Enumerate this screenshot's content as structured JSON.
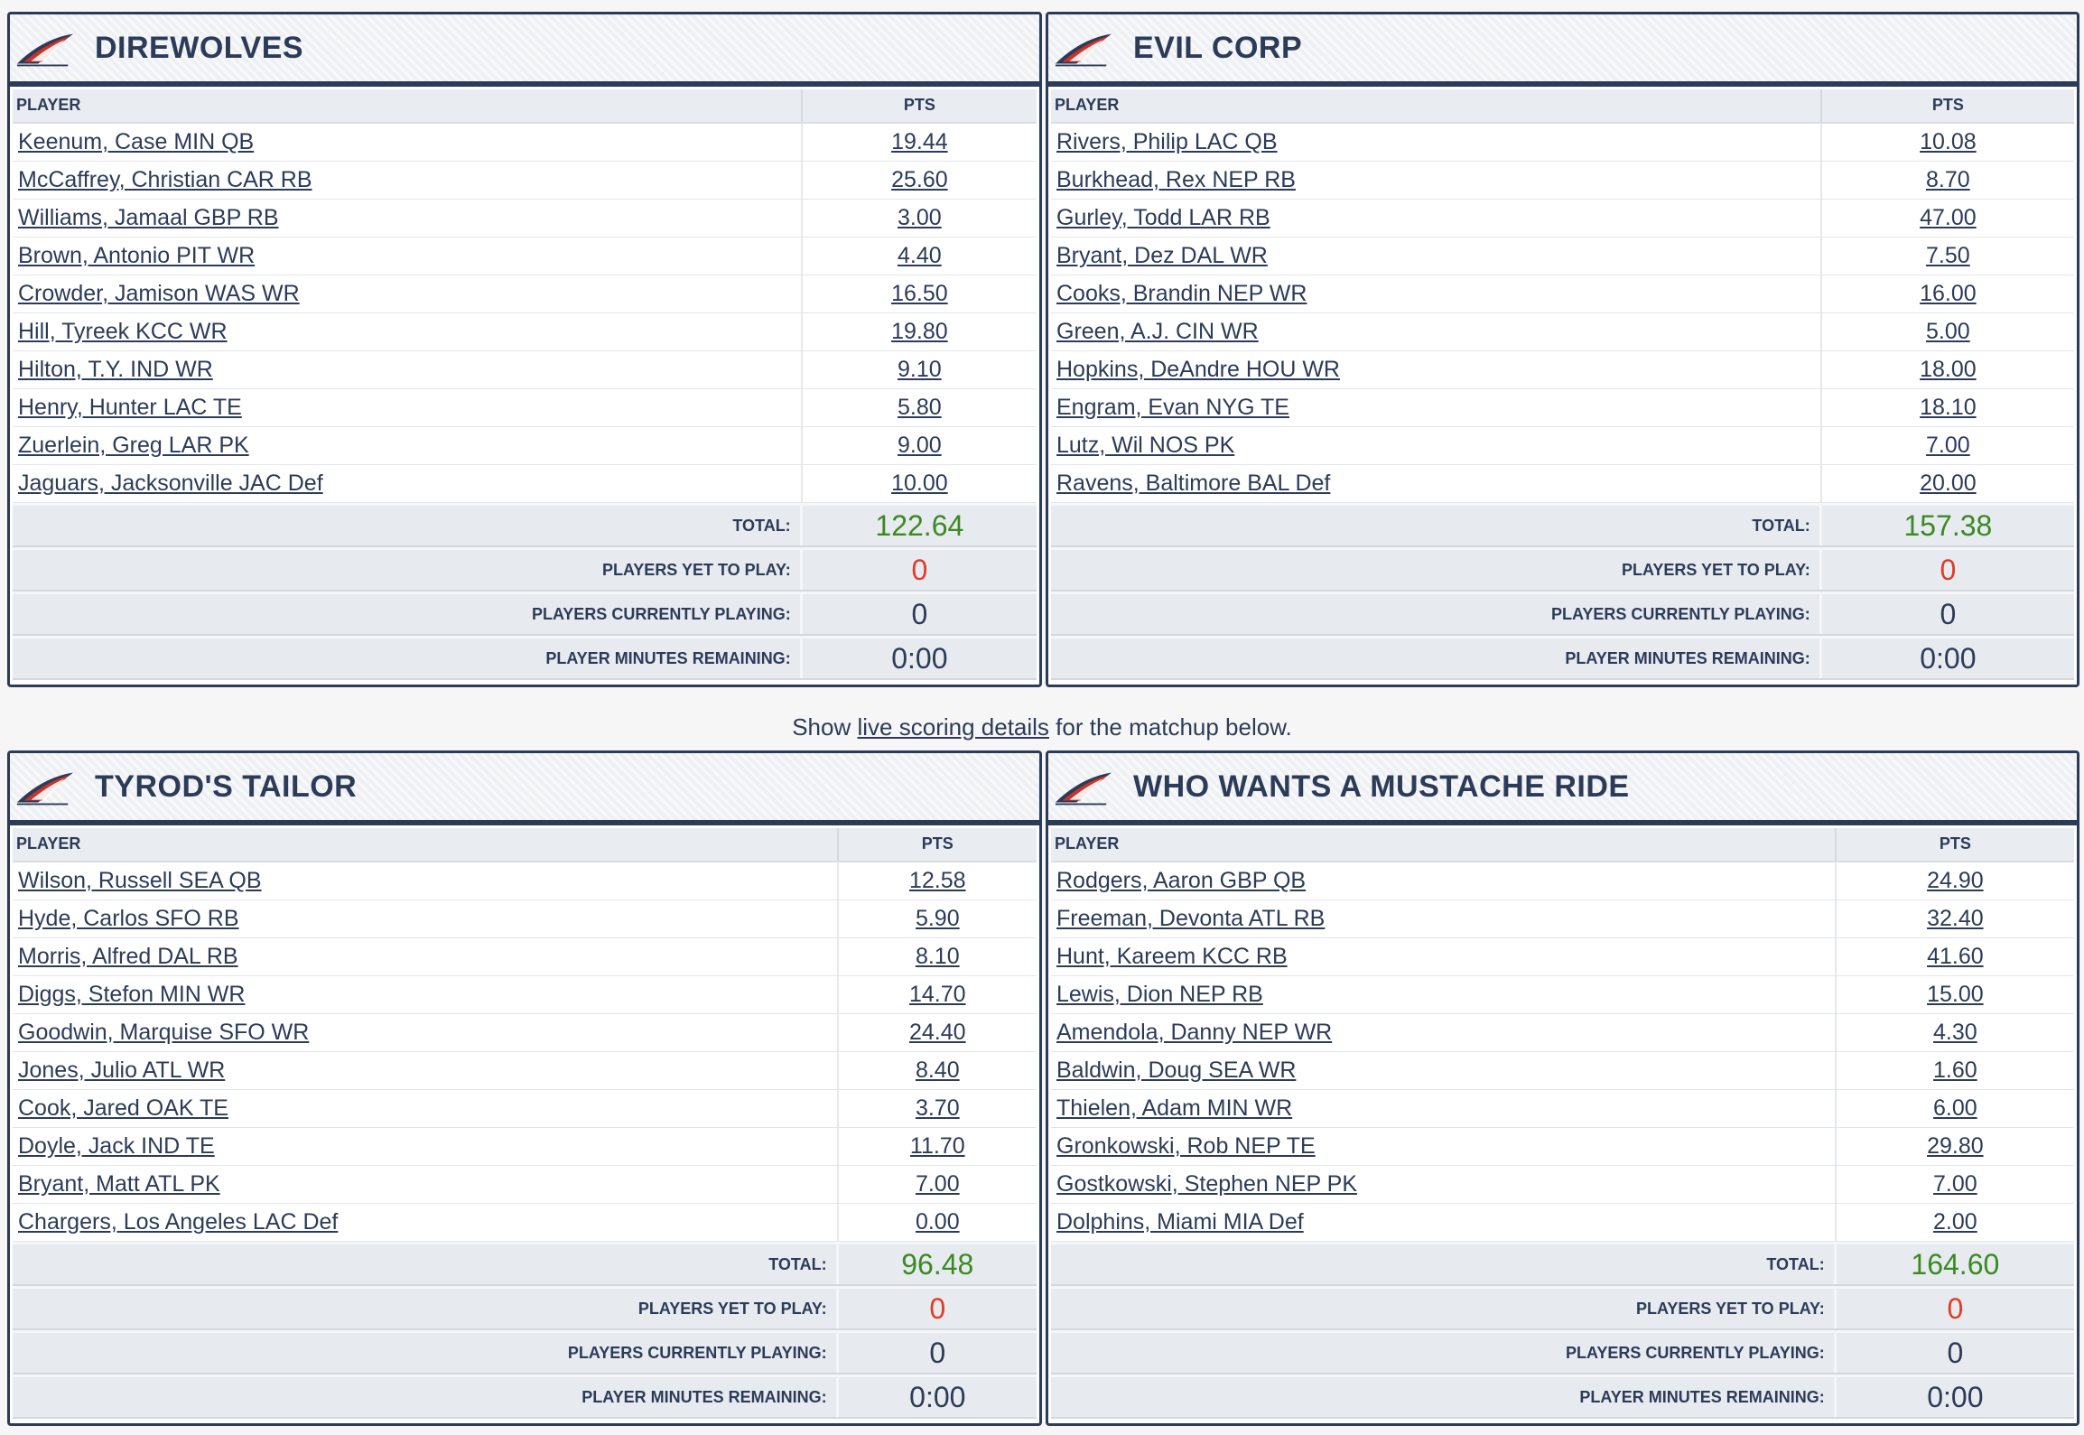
{
  "labels": {
    "player_col": "PLAYER",
    "pts_col": "PTS",
    "total": "TOTAL:",
    "yet_to_play": "PLAYERS YET TO PLAY:",
    "currently_playing": "PLAYERS CURRENTLY PLAYING:",
    "minutes_remaining": "PLAYER MINUTES REMAINING:"
  },
  "colors": {
    "navy": "#2c3b58",
    "total_green": "#3a8a22",
    "yet_red": "#e03c26",
    "row_gray": "#e7eaef"
  },
  "info": {
    "prefix": "Show",
    "link": "live scoring details",
    "suffix": "for the matchup below."
  },
  "teams": [
    {
      "name": "DIREWOLVES",
      "logo_icon": "team-logo-icon",
      "players": [
        {
          "name": "Keenum, Case MIN QB",
          "pts": "19.44"
        },
        {
          "name": "McCaffrey, Christian CAR RB",
          "pts": "25.60"
        },
        {
          "name": "Williams, Jamaal GBP RB",
          "pts": "3.00"
        },
        {
          "name": "Brown, Antonio PIT WR",
          "pts": "4.40"
        },
        {
          "name": "Crowder, Jamison WAS WR",
          "pts": "16.50"
        },
        {
          "name": "Hill, Tyreek KCC WR",
          "pts": "19.80"
        },
        {
          "name": "Hilton, T.Y. IND WR",
          "pts": "9.10"
        },
        {
          "name": "Henry, Hunter LAC TE",
          "pts": "5.80"
        },
        {
          "name": "Zuerlein, Greg LAR PK",
          "pts": "9.00"
        },
        {
          "name": "Jaguars, Jacksonville JAC Def",
          "pts": "10.00"
        }
      ],
      "total": "122.64",
      "yet_to_play": "0",
      "currently_playing": "0",
      "minutes_remaining": "0:00"
    },
    {
      "name": "EVIL CORP",
      "logo_icon": "team-logo-icon",
      "players": [
        {
          "name": "Rivers, Philip LAC QB",
          "pts": "10.08"
        },
        {
          "name": "Burkhead, Rex NEP RB",
          "pts": "8.70"
        },
        {
          "name": "Gurley, Todd LAR RB",
          "pts": "47.00"
        },
        {
          "name": "Bryant, Dez DAL WR",
          "pts": "7.50"
        },
        {
          "name": "Cooks, Brandin NEP WR",
          "pts": "16.00"
        },
        {
          "name": "Green, A.J. CIN WR",
          "pts": "5.00"
        },
        {
          "name": "Hopkins, DeAndre HOU WR",
          "pts": "18.00"
        },
        {
          "name": "Engram, Evan NYG TE",
          "pts": "18.10"
        },
        {
          "name": "Lutz, Wil NOS PK",
          "pts": "7.00"
        },
        {
          "name": "Ravens, Baltimore BAL Def",
          "pts": "20.00"
        }
      ],
      "total": "157.38",
      "yet_to_play": "0",
      "currently_playing": "0",
      "minutes_remaining": "0:00"
    },
    {
      "name": "TYROD'S TAILOR",
      "logo_icon": "team-logo-icon",
      "players": [
        {
          "name": "Wilson, Russell SEA QB",
          "pts": "12.58"
        },
        {
          "name": "Hyde, Carlos SFO RB",
          "pts": "5.90"
        },
        {
          "name": "Morris, Alfred DAL RB",
          "pts": "8.10"
        },
        {
          "name": "Diggs, Stefon MIN WR",
          "pts": "14.70"
        },
        {
          "name": "Goodwin, Marquise SFO WR",
          "pts": "24.40"
        },
        {
          "name": "Jones, Julio ATL WR",
          "pts": "8.40"
        },
        {
          "name": "Cook, Jared OAK TE",
          "pts": "3.70"
        },
        {
          "name": "Doyle, Jack IND TE",
          "pts": "11.70"
        },
        {
          "name": "Bryant, Matt ATL PK",
          "pts": "7.00"
        },
        {
          "name": "Chargers, Los Angeles LAC Def",
          "pts": "0.00"
        }
      ],
      "total": "96.48",
      "yet_to_play": "0",
      "currently_playing": "0",
      "minutes_remaining": "0:00"
    },
    {
      "name": "WHO WANTS A MUSTACHE RIDE",
      "logo_icon": "team-logo-icon",
      "players": [
        {
          "name": "Rodgers, Aaron GBP QB",
          "pts": "24.90"
        },
        {
          "name": "Freeman, Devonta ATL RB",
          "pts": "32.40"
        },
        {
          "name": "Hunt, Kareem KCC RB",
          "pts": "41.60"
        },
        {
          "name": "Lewis, Dion NEP RB",
          "pts": "15.00"
        },
        {
          "name": "Amendola, Danny NEP WR",
          "pts": "4.30"
        },
        {
          "name": "Baldwin, Doug SEA WR",
          "pts": "1.60"
        },
        {
          "name": "Thielen, Adam MIN WR",
          "pts": "6.00"
        },
        {
          "name": "Gronkowski, Rob NEP TE",
          "pts": "29.80"
        },
        {
          "name": "Gostkowski, Stephen NEP PK",
          "pts": "7.00"
        },
        {
          "name": "Dolphins, Miami MIA Def",
          "pts": "2.00"
        }
      ],
      "total": "164.60",
      "yet_to_play": "0",
      "currently_playing": "0",
      "minutes_remaining": "0:00"
    }
  ]
}
